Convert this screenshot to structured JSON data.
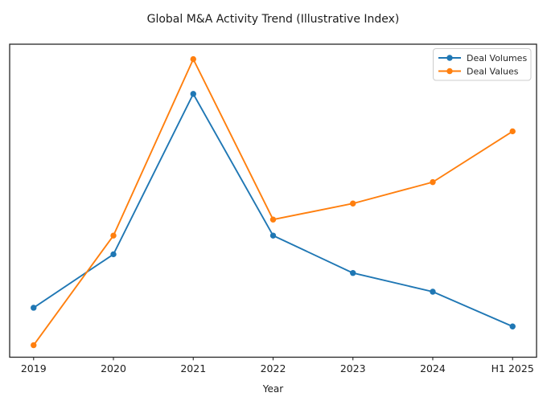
{
  "chart_data": {
    "type": "line",
    "title": "Global M&A Activity Trend (Illustrative Index)",
    "xlabel": "Year",
    "ylabel": "",
    "categories": [
      "2019",
      "2020",
      "2021",
      "2022",
      "2023",
      "2024",
      "H1 2025"
    ],
    "series": [
      {
        "name": "Deal Volumes",
        "color": "#1f77b4",
        "marker": "circle",
        "values": [
          100,
          120,
          180,
          127,
          113,
          106,
          93
        ]
      },
      {
        "name": "Deal Values",
        "color": "#ff7f0e",
        "marker": "circle",
        "values": [
          86,
          127,
          193,
          133,
          139,
          147,
          166
        ]
      }
    ],
    "xlim": [
      -0.3,
      6.3
    ],
    "ylim": [
      81.5,
      198.6
    ],
    "grid": false,
    "y_ticks_visible": false,
    "legend_position": "upper right"
  },
  "colors": {
    "spine": "#262626",
    "text": "#1c1c1c",
    "legend_border": "#cccccc",
    "background": "#ffffff",
    "series_blue": "#1f77b4",
    "series_orange": "#ff7f0e"
  }
}
